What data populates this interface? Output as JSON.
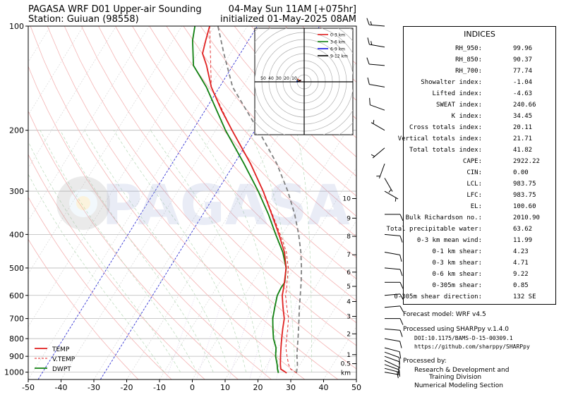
{
  "header": {
    "title_line1": "PAGASA WRF D01 Upper-air Sounding",
    "title_line2": "Station: Guiuan (98558)",
    "valid_line1": "04-May Sun 11AM [+075hr]",
    "valid_line2": "initialized 01-May-2025 08AM"
  },
  "watermark": "PAGASA",
  "chart_data": {
    "type": "line",
    "subtype": "skew-t log-p sounding",
    "xlim": [
      -50,
      50
    ],
    "ylim_hPa": [
      1050,
      100
    ],
    "y_log_scale": true,
    "x_ticks": [
      -50,
      -40,
      -30,
      -20,
      -10,
      0,
      10,
      20,
      30,
      40,
      50
    ],
    "y_ticks": [
      100,
      200,
      300,
      400,
      500,
      600,
      700,
      800,
      900,
      1000
    ],
    "height_ticks_km": [
      "10",
      "9",
      "8",
      "7",
      "6",
      "5",
      "4",
      "3",
      "2",
      "1",
      "0.5",
      "km"
    ],
    "height_ticks_p": [
      315,
      359,
      405,
      458,
      514,
      565,
      625,
      690,
      775,
      890,
      945,
      1005
    ],
    "legend": [
      "TEMP",
      "V.TEMP",
      "DWPT"
    ],
    "legend_position": "bottom-left",
    "series": [
      {
        "name": "TEMP",
        "color": "#e02020",
        "points": [
          [
            1005,
            27.5
          ],
          [
            980,
            25.0
          ],
          [
            950,
            24.0
          ],
          [
            900,
            22.5
          ],
          [
            850,
            21.0
          ],
          [
            800,
            19.5
          ],
          [
            750,
            18.0
          ],
          [
            700,
            16.5
          ],
          [
            650,
            14.0
          ],
          [
            600,
            11.5
          ],
          [
            570,
            10.5
          ],
          [
            550,
            9.7
          ],
          [
            500,
            7.5
          ],
          [
            450,
            4.0
          ],
          [
            400,
            -1.0
          ],
          [
            350,
            -7.0
          ],
          [
            300,
            -14.0
          ],
          [
            250,
            -23.0
          ],
          [
            200,
            -35.0
          ],
          [
            175,
            -42.0
          ],
          [
            150,
            -49.5
          ],
          [
            130,
            -55.0
          ],
          [
            120,
            -58.5
          ],
          [
            110,
            -60.0
          ],
          [
            100,
            -61.5
          ]
        ]
      },
      {
        "name": "V.TEMP",
        "color": "#e02020",
        "points": [
          [
            1005,
            30.5
          ],
          [
            980,
            28.0
          ],
          [
            950,
            26.5
          ],
          [
            900,
            24.5
          ],
          [
            850,
            22.5
          ],
          [
            800,
            21.0
          ],
          [
            750,
            19.5
          ],
          [
            700,
            17.8
          ],
          [
            650,
            15.2
          ],
          [
            600,
            12.5
          ],
          [
            570,
            11.4
          ],
          [
            550,
            10.5
          ],
          [
            500,
            8.2
          ],
          [
            450,
            4.6
          ],
          [
            400,
            -0.6
          ],
          [
            350,
            -6.8
          ],
          [
            300,
            -13.9
          ],
          [
            250,
            -23.0
          ],
          [
            200,
            -35.0
          ],
          [
            150,
            -49.5
          ],
          [
            100,
            -61.5
          ]
        ]
      },
      {
        "name": "DWPT",
        "color": "#108010",
        "points": [
          [
            1005,
            25.0
          ],
          [
            980,
            24.0
          ],
          [
            950,
            23.0
          ],
          [
            900,
            21.0
          ],
          [
            850,
            19.5
          ],
          [
            800,
            17.0
          ],
          [
            750,
            15.0
          ],
          [
            700,
            13.0
          ],
          [
            650,
            11.5
          ],
          [
            600,
            10.0
          ],
          [
            570,
            9.7
          ],
          [
            550,
            9.8
          ],
          [
            500,
            7.5
          ],
          [
            450,
            3.5
          ],
          [
            400,
            -2.0
          ],
          [
            350,
            -8.0
          ],
          [
            300,
            -15.5
          ],
          [
            250,
            -25.0
          ],
          [
            200,
            -37.0
          ],
          [
            150,
            -51.0
          ],
          [
            130,
            -59.0
          ],
          [
            110,
            -64.0
          ],
          [
            100,
            -66.0
          ]
        ]
      },
      {
        "name": "Parcel",
        "color": "#808080",
        "points": [
          [
            1005,
            30.5
          ],
          [
            950,
            29.2
          ],
          [
            900,
            27.5
          ],
          [
            850,
            26.0
          ],
          [
            800,
            24.5
          ],
          [
            750,
            22.8
          ],
          [
            700,
            21.0
          ],
          [
            650,
            19.0
          ],
          [
            600,
            17.0
          ],
          [
            550,
            14.8
          ],
          [
            500,
            12.2
          ],
          [
            450,
            9.0
          ],
          [
            400,
            5.0
          ],
          [
            350,
            0.0
          ],
          [
            300,
            -6.5
          ],
          [
            250,
            -15.0
          ],
          [
            200,
            -27.0
          ],
          [
            150,
            -43.0
          ],
          [
            120,
            -52.0
          ],
          [
            100,
            -59.0
          ]
        ]
      }
    ],
    "wind_barbs": [
      {
        "p": 1000,
        "dir": 100,
        "spd": 5
      },
      {
        "p": 975,
        "dir": 105,
        "spd": 5
      },
      {
        "p": 950,
        "dir": 110,
        "spd": 10
      },
      {
        "p": 925,
        "dir": 115,
        "spd": 10
      },
      {
        "p": 900,
        "dir": 110,
        "spd": 10
      },
      {
        "p": 875,
        "dir": 110,
        "spd": 10
      },
      {
        "p": 850,
        "dir": 105,
        "spd": 10
      },
      {
        "p": 800,
        "dir": 100,
        "spd": 10
      },
      {
        "p": 750,
        "dir": 95,
        "spd": 10
      },
      {
        "p": 700,
        "dir": 90,
        "spd": 10
      },
      {
        "p": 650,
        "dir": 85,
        "spd": 10
      },
      {
        "p": 600,
        "dir": 85,
        "spd": 10
      },
      {
        "p": 550,
        "dir": 90,
        "spd": 10
      },
      {
        "p": 500,
        "dir": 95,
        "spd": 10
      },
      {
        "p": 450,
        "dir": 100,
        "spd": 10
      },
      {
        "p": 400,
        "dir": 95,
        "spd": 10
      },
      {
        "p": 350,
        "dir": 90,
        "spd": 10
      },
      {
        "p": 300,
        "dir": 120,
        "spd": 5
      },
      {
        "p": 275,
        "dir": 150,
        "spd": 5
      },
      {
        "p": 250,
        "dir": 200,
        "spd": 5
      },
      {
        "p": 225,
        "dir": 230,
        "spd": 5
      },
      {
        "p": 200,
        "dir": 300,
        "spd": 5
      },
      {
        "p": 175,
        "dir": 290,
        "spd": 10
      },
      {
        "p": 150,
        "dir": 280,
        "spd": 10
      },
      {
        "p": 130,
        "dir": 275,
        "spd": 10
      },
      {
        "p": 115,
        "dir": 280,
        "spd": 15
      },
      {
        "p": 100,
        "dir": 275,
        "spd": 15
      }
    ],
    "hodograph": {
      "ring_labels": [
        "50",
        "40",
        "30",
        "20",
        "10"
      ],
      "legend": [
        {
          "label": "0-3 km",
          "color": "#e02020"
        },
        {
          "label": "3-6 km",
          "color": "#108010"
        },
        {
          "label": "6-9 km",
          "color": "#1010e0"
        },
        {
          "label": "9-12 km",
          "color": "#000000"
        }
      ]
    }
  },
  "indices": {
    "title": "INDICES",
    "rows": [
      {
        "label": "RH_950:",
        "value": "99.96"
      },
      {
        "label": "RH_850:",
        "value": "90.37"
      },
      {
        "label": "RH_700:",
        "value": "77.74"
      },
      {
        "label": "Showalter index:",
        "value": "-1.04"
      },
      {
        "label": "Lifted index:",
        "value": "-4.63"
      },
      {
        "label": "SWEAT index:",
        "value": "240.66"
      },
      {
        "label": "K index:",
        "value": "34.45"
      },
      {
        "label": "Cross totals index:",
        "value": "20.11"
      },
      {
        "label": "Vertical totals index:",
        "value": "21.71"
      },
      {
        "label": "Total totals index:",
        "value": "41.82"
      },
      {
        "label": "CAPE:",
        "value": "2922.22"
      },
      {
        "label": "CIN:",
        "value": "0.00"
      },
      {
        "label": "LCL:",
        "value": "983.75"
      },
      {
        "label": "LFC:",
        "value": "983.75"
      },
      {
        "label": "EL:",
        "value": "100.60"
      },
      {
        "label": "Bulk Richardson no.:",
        "value": "2010.90"
      },
      {
        "label": "Total precipitable water:",
        "value": "63.62"
      },
      {
        "label": "0-3 km mean wind:",
        "value": "11.99"
      },
      {
        "label": "0-1 km shear:",
        "value": "4.23"
      },
      {
        "label": "0-3 km shear:",
        "value": "4.71"
      },
      {
        "label": "0-6 km shear:",
        "value": "9.22"
      },
      {
        "label": "0-305m shear:",
        "value": "0.85"
      },
      {
        "label": "0-305m shear direction:",
        "value": "132 SE"
      }
    ]
  },
  "footer": {
    "model": "Forecast model: WRF v4.5",
    "processed_using": "Processed using SHARPpy v.1.4.0",
    "doi": "DOI:10.1175/BAMS-D-15-00309.1",
    "url": "https://github.com/sharppy/SHARPpy",
    "processed_by": "Processed by:",
    "division_1": "Research & Development and",
    "division_2": "Training Division",
    "division_3": "Numerical Modeling Section"
  }
}
